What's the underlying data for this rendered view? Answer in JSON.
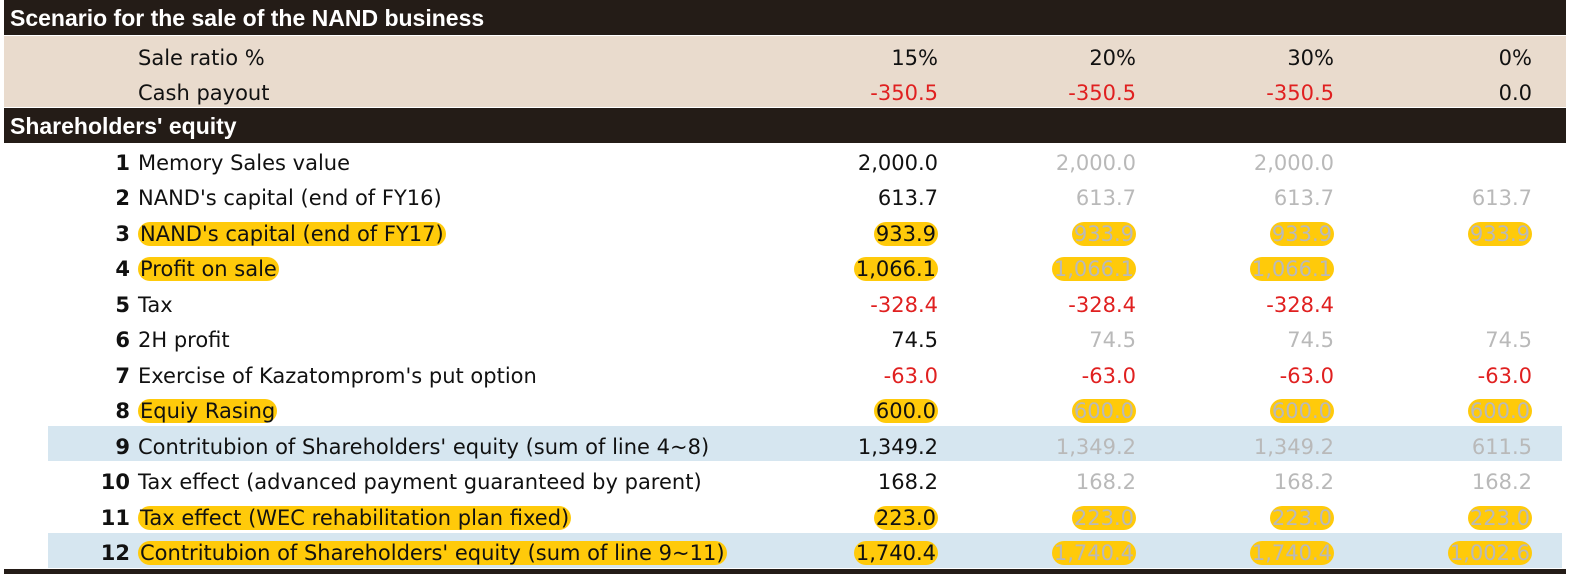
{
  "section1": {
    "title": "Scenario for the sale of the NAND business"
  },
  "scenario": {
    "sale_ratio": {
      "label": "Sale ratio %",
      "values": [
        "15%",
        "20%",
        "30%",
        "0%"
      ]
    },
    "cash_payout": {
      "label": "Cash payout",
      "values": [
        "-350.5",
        "-350.5",
        "-350.5",
        "0.0"
      ]
    }
  },
  "section2": {
    "title": "Shareholders' equity"
  },
  "rows": [
    {
      "num": "1",
      "label": "Memory  Sales value",
      "values": [
        "2,000.0",
        "2,000.0",
        "2,000.0",
        ""
      ]
    },
    {
      "num": "2",
      "label": "NAND's capital (end of FY16)",
      "values": [
        "613.7",
        "613.7",
        "613.7",
        "613.7"
      ]
    },
    {
      "num": "3",
      "label": "NAND's capital (end of FY17)",
      "values": [
        "933.9",
        "933.9",
        "933.9",
        "933.9"
      ]
    },
    {
      "num": "4",
      "label": "Profit on sale",
      "values": [
        "1,066.1",
        "1,066.1",
        "1,066.1",
        ""
      ]
    },
    {
      "num": "5",
      "label": "Tax",
      "values": [
        "-328.4",
        "-328.4",
        "-328.4",
        ""
      ]
    },
    {
      "num": "6",
      "label": "2H profit",
      "values": [
        "74.5",
        "74.5",
        "74.5",
        "74.5"
      ]
    },
    {
      "num": "7",
      "label": "Exercise of Kazatomprom's put option",
      "values": [
        "-63.0",
        "-63.0",
        "-63.0",
        "-63.0"
      ]
    },
    {
      "num": "8",
      "label": "Equiy Rasing",
      "values": [
        "600.0",
        "600.0",
        "600.0",
        "600.0"
      ]
    },
    {
      "num": "9",
      "label": "Contritubion of Shareholders' equity (sum of line 4~8)",
      "values": [
        "1,349.2",
        "1,349.2",
        "1,349.2",
        "611.5"
      ]
    },
    {
      "num": "10",
      "label": "Tax effect (advanced payment guaranteed by parent)",
      "values": [
        "168.2",
        "168.2",
        "168.2",
        "168.2"
      ]
    },
    {
      "num": "11",
      "label": "Tax effect (WEC rehabilitation plan fixed)",
      "values": [
        "223.0",
        "223.0",
        "223.0",
        "223.0"
      ]
    },
    {
      "num": "12",
      "label": "Contritubion of Shareholders' equity (sum of line 9~11)",
      "values": [
        "1,740.4",
        "1,740.4",
        "1,740.4",
        "1,002.6"
      ]
    }
  ],
  "colors": {
    "header_band": "#241c17",
    "scenario_fill": "#e9dbcd",
    "sum_row_fill": "#d6e6f0",
    "highlight": "#ffca0a",
    "negative": "#e02020",
    "muted": "#b9b9b9"
  }
}
